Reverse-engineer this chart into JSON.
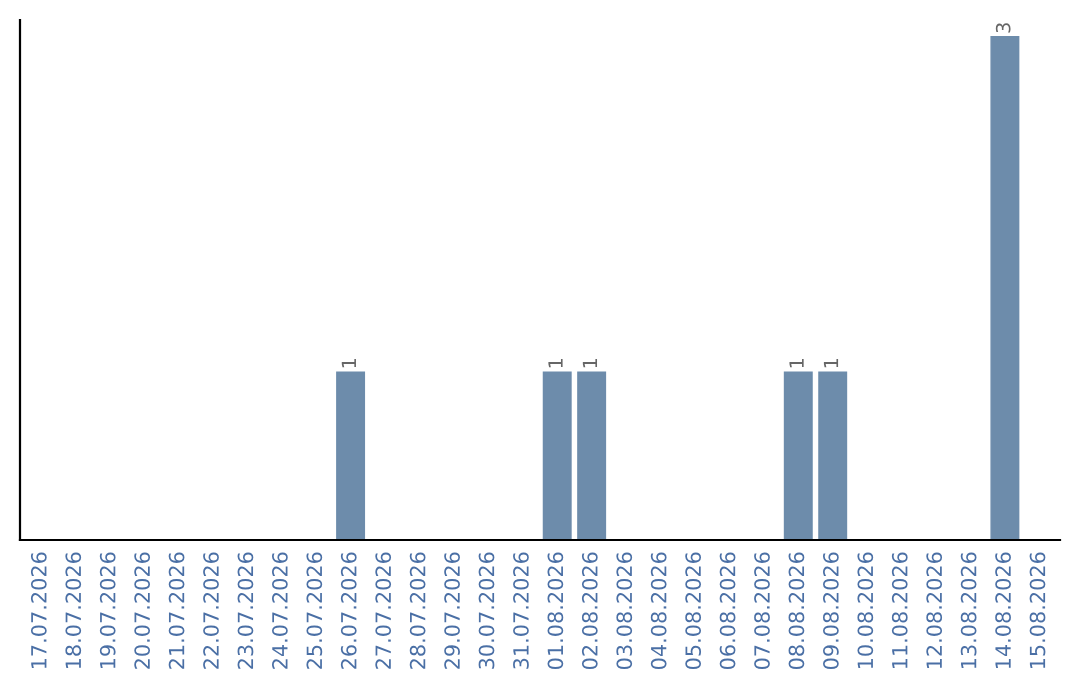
{
  "chart_data": {
    "type": "bar",
    "categories": [
      "17.07.2026",
      "18.07.2026",
      "19.07.2026",
      "20.07.2026",
      "21.07.2026",
      "22.07.2026",
      "23.07.2026",
      "24.07.2026",
      "25.07.2026",
      "26.07.2026",
      "27.07.2026",
      "28.07.2026",
      "29.07.2026",
      "30.07.2026",
      "31.07.2026",
      "01.08.2026",
      "02.08.2026",
      "03.08.2026",
      "04.08.2026",
      "05.08.2026",
      "06.08.2026",
      "07.08.2026",
      "08.08.2026",
      "09.08.2026",
      "10.08.2026",
      "11.08.2026",
      "12.08.2026",
      "13.08.2026",
      "14.08.2026",
      "15.08.2026"
    ],
    "values": [
      0,
      0,
      0,
      0,
      0,
      0,
      0,
      0,
      0,
      1,
      0,
      0,
      0,
      0,
      0,
      1,
      1,
      0,
      0,
      0,
      0,
      0,
      1,
      1,
      0,
      0,
      0,
      0,
      3,
      0
    ],
    "value_labels": [
      null,
      null,
      null,
      null,
      null,
      null,
      null,
      null,
      null,
      "1",
      null,
      null,
      null,
      null,
      null,
      "1",
      "1",
      null,
      null,
      null,
      null,
      null,
      "1",
      "1",
      null,
      null,
      null,
      null,
      "3",
      null
    ],
    "color": "#6d8cab",
    "ylim": [
      0,
      3.1
    ],
    "tick_labels": "x",
    "grid": false,
    "legend": false
  }
}
